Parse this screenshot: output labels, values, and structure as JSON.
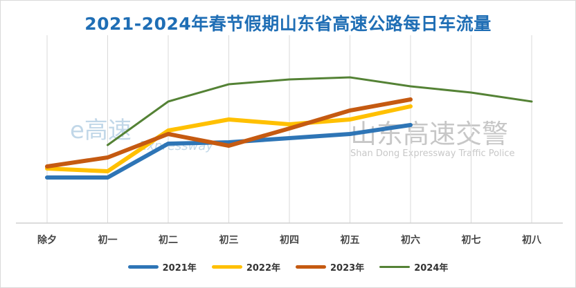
{
  "title": "2021-2024年春节假期山东省高速公路每日车流量",
  "watermarks": {
    "left_logo": "e高速",
    "left_sub": "Expressway",
    "right_logo": "山东高速交警",
    "right_sub": "Shan Dong Expressway Traffic Police"
  },
  "chart_data": {
    "type": "line",
    "title": "2021-2024年春节假期山东省高速公路每日车流量",
    "xlabel": "",
    "ylabel": "",
    "y_axis_labels_shown": false,
    "value_units": "relative (no y-axis printed)",
    "ylim": [
      0,
      262
    ],
    "grid": "vertical gridlines at categories",
    "legend_position": "bottom",
    "categories": [
      "除夕",
      "初一",
      "初二",
      "初三",
      "初四",
      "初五",
      "初六",
      "初七",
      "初八"
    ],
    "series": [
      {
        "name": "2021年",
        "color": "#2e75b6",
        "values": [
          66,
          66,
          115,
          117,
          123,
          129,
          142,
          null,
          null
        ]
      },
      {
        "name": "2022年",
        "color": "#ffc000",
        "values": [
          79,
          75,
          134,
          150,
          143,
          150,
          169,
          null,
          null
        ]
      },
      {
        "name": "2023年",
        "color": "#c55a11",
        "values": [
          82,
          95,
          129,
          112,
          137,
          163,
          179,
          null,
          null
        ]
      },
      {
        "name": "2024年",
        "color": "#548235",
        "values": [
          null,
          113,
          176,
          201,
          208,
          211,
          198,
          189,
          176
        ]
      }
    ]
  }
}
